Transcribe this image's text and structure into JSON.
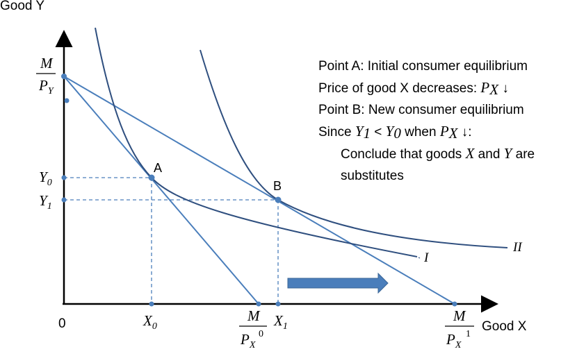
{
  "axes": {
    "y_label": "Good Y",
    "x_label": "Good X",
    "origin": "0"
  },
  "y_ticks": {
    "m_over_py": {
      "num": "M",
      "den": "P",
      "den_sub": "Y"
    },
    "y0": {
      "main": "Y",
      "sub": "0"
    },
    "y1": {
      "main": "Y",
      "sub": "1"
    }
  },
  "x_ticks": {
    "x0": {
      "main": "X",
      "sub": "0"
    },
    "x1": {
      "main": "X",
      "sub": "1"
    },
    "m_over_px0": {
      "num": "M",
      "den": "P",
      "den_sub": "X",
      "den_sup": "0"
    },
    "m_over_px1": {
      "num": "M",
      "den": "P",
      "den_sub": "X",
      "den_sup": "1"
    }
  },
  "points": {
    "a": "A",
    "b": "B"
  },
  "curves": {
    "indiff_1": "I",
    "indiff_2": "II"
  },
  "annotations": {
    "line1": "Point A: Initial consumer equilibrium",
    "line2_text": "Price of good X decreases: ",
    "line2_math": "P",
    "line2_sub": "X",
    "line2_arrow": " ↓",
    "line3": "Point B: New consumer equilibrium",
    "line4_pre": "Since ",
    "line4_y1": "Y",
    "line4_y1_sub": "1",
    "line4_lt": " < ",
    "line4_y0": "Y",
    "line4_y0_sub": "0",
    "line4_mid": " when ",
    "line4_px": "P",
    "line4_px_sub": "X",
    "line4_post": " ↓:",
    "line5_pre": "Conclude that goods ",
    "line5_x": "X",
    "line5_and": " and ",
    "line5_y": "Y",
    "line5_post": " are",
    "line6": "substitutes"
  },
  "colors": {
    "budget_line": "#4A7EBB",
    "indifference_curve": "#2F4F7F",
    "dashed_guide": "#4A7EBB",
    "shift_arrow": "#4A7EBB",
    "axis": "#000000"
  }
}
